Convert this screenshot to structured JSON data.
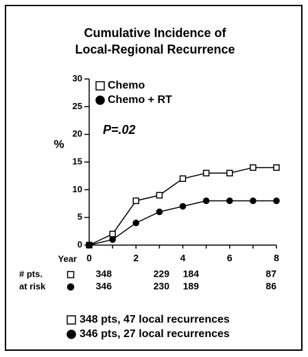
{
  "chart_data": {
    "type": "line",
    "title": [
      "Cumulative Incidence of",
      "Local-Regional Recurrence"
    ],
    "ylabel": "%",
    "xlabel": "Year",
    "annotation": "P=.02",
    "x": [
      0,
      1,
      2,
      3,
      4,
      5,
      6,
      7,
      8
    ],
    "xlim": [
      0,
      8
    ],
    "xticks": [
      0,
      2,
      4,
      6,
      8
    ],
    "ylim": [
      0,
      30
    ],
    "yticks": [
      0,
      5,
      10,
      15,
      20,
      25,
      30
    ],
    "series": [
      {
        "name": "Chemo",
        "marker": "square",
        "color": "#000000",
        "values": [
          0,
          2,
          8,
          9,
          12,
          13,
          13,
          14,
          14
        ]
      },
      {
        "name": "Chemo + RT",
        "marker": "circle",
        "color": "#000000",
        "values": [
          0,
          1,
          4,
          6,
          7,
          8,
          8,
          8,
          8
        ]
      }
    ],
    "risk_table": {
      "labels": [
        "# pts.",
        "at risk"
      ],
      "rows": [
        [
          348,
          229,
          184,
          87
        ],
        [
          346,
          230,
          189,
          86
        ]
      ]
    },
    "footnotes": [
      "348 pts, 47 local recurrences",
      "346 pts, 27 local recurrences"
    ]
  }
}
